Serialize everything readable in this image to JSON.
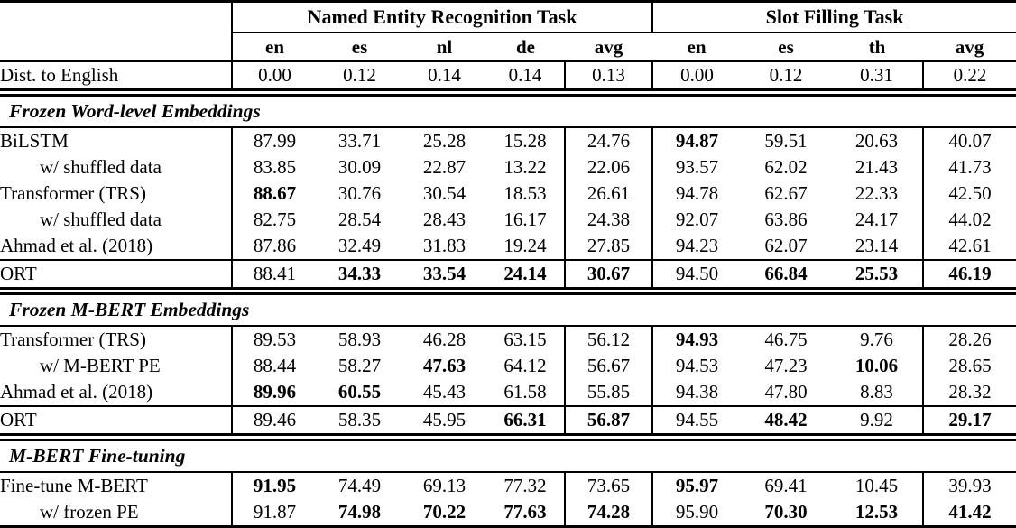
{
  "table": {
    "groups": [
      {
        "label": "Named Entity Recognition Task"
      },
      {
        "label": "Slot Filling Task"
      }
    ],
    "lang_headers": [
      "en",
      "es",
      "nl",
      "de",
      "avg",
      "en",
      "es",
      "th",
      "avg"
    ],
    "dist_row": {
      "label": "Dist. to English",
      "values": [
        "0.00",
        "0.12",
        "0.14",
        "0.14",
        "0.13",
        "0.00",
        "0.12",
        "0.31",
        "0.22"
      ]
    },
    "sections": [
      {
        "title": "Frozen Word-level Embeddings",
        "rows": [
          {
            "label": "BiLSTM",
            "indent": false,
            "separator_above": false,
            "values": [
              "87.99",
              "33.71",
              "25.28",
              "15.28",
              "24.76",
              "94.87",
              "59.51",
              "20.63",
              "40.07"
            ],
            "bold": [
              5
            ]
          },
          {
            "label": "w/ shuffled data",
            "indent": true,
            "separator_above": false,
            "values": [
              "83.85",
              "30.09",
              "22.87",
              "13.22",
              "22.06",
              "93.57",
              "62.02",
              "21.43",
              "41.73"
            ],
            "bold": []
          },
          {
            "label": "Transformer (TRS)",
            "indent": false,
            "separator_above": false,
            "values": [
              "88.67",
              "30.76",
              "30.54",
              "18.53",
              "26.61",
              "94.78",
              "62.67",
              "22.33",
              "42.50"
            ],
            "bold": [
              0
            ]
          },
          {
            "label": "w/ shuffled data",
            "indent": true,
            "separator_above": false,
            "values": [
              "82.75",
              "28.54",
              "28.43",
              "16.17",
              "24.38",
              "92.07",
              "63.86",
              "24.17",
              "44.02"
            ],
            "bold": []
          },
          {
            "label": "Ahmad et al. (2018)",
            "indent": false,
            "separator_above": false,
            "values": [
              "87.86",
              "32.49",
              "31.83",
              "19.24",
              "27.85",
              "94.23",
              "62.07",
              "23.14",
              "42.61"
            ],
            "bold": []
          },
          {
            "label": "ORT",
            "indent": false,
            "separator_above": true,
            "values": [
              "88.41",
              "34.33",
              "33.54",
              "24.14",
              "30.67",
              "94.50",
              "66.84",
              "25.53",
              "46.19"
            ],
            "bold": [
              1,
              2,
              3,
              4,
              6,
              7,
              8
            ]
          }
        ]
      },
      {
        "title": "Frozen M-BERT Embeddings",
        "rows": [
          {
            "label": "Transformer (TRS)",
            "indent": false,
            "separator_above": false,
            "values": [
              "89.53",
              "58.93",
              "46.28",
              "63.15",
              "56.12",
              "94.93",
              "46.75",
              "9.76",
              "28.26"
            ],
            "bold": [
              5
            ]
          },
          {
            "label": "w/ M-BERT PE",
            "indent": true,
            "separator_above": false,
            "values": [
              "88.44",
              "58.27",
              "47.63",
              "64.12",
              "56.67",
              "94.53",
              "47.23",
              "10.06",
              "28.65"
            ],
            "bold": [
              2,
              7
            ]
          },
          {
            "label": "Ahmad et al. (2018)",
            "indent": false,
            "separator_above": false,
            "values": [
              "89.96",
              "60.55",
              "45.43",
              "61.58",
              "55.85",
              "94.38",
              "47.80",
              "8.83",
              "28.32"
            ],
            "bold": [
              0,
              1
            ]
          },
          {
            "label": "ORT",
            "indent": false,
            "separator_above": true,
            "values": [
              "89.46",
              "58.35",
              "45.95",
              "66.31",
              "56.87",
              "94.55",
              "48.42",
              "9.92",
              "29.17"
            ],
            "bold": [
              3,
              4,
              6,
              8
            ]
          }
        ]
      },
      {
        "title": "M-BERT Fine-tuning",
        "rows": [
          {
            "label": "Fine-tune M-BERT",
            "indent": false,
            "separator_above": false,
            "values": [
              "91.95",
              "74.49",
              "69.13",
              "77.32",
              "73.65",
              "95.97",
              "69.41",
              "10.45",
              "39.93"
            ],
            "bold": [
              0,
              5
            ]
          },
          {
            "label": "w/ frozen PE",
            "indent": true,
            "separator_above": false,
            "values": [
              "91.87",
              "74.98",
              "70.22",
              "77.63",
              "74.28",
              "95.90",
              "70.30",
              "12.53",
              "41.42"
            ],
            "bold": [
              1,
              2,
              3,
              4,
              6,
              7,
              8
            ]
          }
        ]
      }
    ]
  }
}
